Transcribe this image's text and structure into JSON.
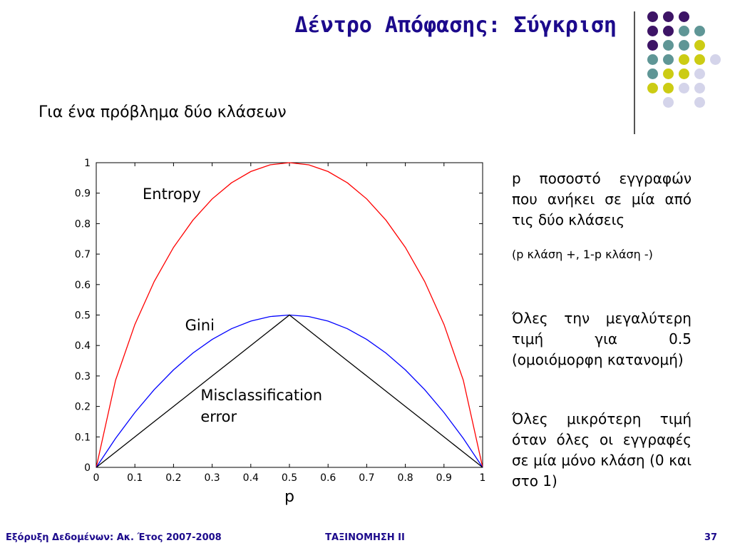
{
  "slide": {
    "title": "Δέντρο Απόφασης: Σύγκριση",
    "subtitle": "Για ένα πρόβλημα δύο κλάσεων"
  },
  "notes": {
    "p1": "p ποσοστό εγγραφών που ανήκει σε μία από τις δύο κλάσεις",
    "p2": "(p κλάση +, 1-p κλάση -)",
    "p3": "Όλες την μεγαλύτερη τιμή για 0.5 (ομοιόμορφη κατανομή)",
    "p4": "Όλες μικρότερη τιμή όταν όλες οι εγγραφές σε μία μόνο κλάση (0 και στο 1)"
  },
  "footer": {
    "left": "Εξόρυξη Δεδομένων: Ακ. Έτος 2007-2008",
    "center": "ΤΑΞΙΝΟΜΗΣΗ ΙΙ",
    "page": "37"
  },
  "colors": {
    "title": "#1c0a8c",
    "purple": "#3d1466",
    "teal": "#5f9696",
    "yellow": "#cccc14",
    "lavender": "#d4d4ea"
  },
  "dot_grid": [
    [
      "purple",
      "purple",
      "purple",
      null,
      null
    ],
    [
      "purple",
      "purple",
      "teal",
      "teal",
      null
    ],
    [
      "purple",
      "teal",
      "teal",
      "yellow",
      null
    ],
    [
      "teal",
      "teal",
      "yellow",
      "yellow",
      "lavender"
    ],
    [
      "teal",
      "yellow",
      "yellow",
      "lavender",
      null
    ],
    [
      "yellow",
      "yellow",
      "lavender",
      "lavender",
      null
    ],
    [
      null,
      "lavender",
      null,
      "lavender",
      null
    ]
  ],
  "chart_data": {
    "type": "line",
    "xlabel": "p",
    "ylabel": "",
    "xlim": [
      0,
      1
    ],
    "ylim": [
      0,
      1
    ],
    "xticks": [
      0,
      0.1,
      0.2,
      0.3,
      0.4,
      0.5,
      0.6,
      0.7,
      0.8,
      0.9,
      1
    ],
    "yticks": [
      0,
      0.1,
      0.2,
      0.3,
      0.4,
      0.5,
      0.6,
      0.7,
      0.8,
      0.9,
      1
    ],
    "xtick_labels": [
      "0",
      "0.1",
      "0.2",
      "0.3",
      "0.4",
      "0.5",
      "0.6",
      "0.7",
      "0.8",
      "0.9",
      "1"
    ],
    "ytick_labels": [
      "0",
      "0.1",
      "0.2",
      "0.3",
      "0.4",
      "0.5",
      "0.6",
      "0.7",
      "0.8",
      "0.9",
      "1"
    ],
    "grid": false,
    "x": [
      0,
      0.05,
      0.1,
      0.15,
      0.2,
      0.25,
      0.3,
      0.35,
      0.4,
      0.45,
      0.5,
      0.55,
      0.6,
      0.65,
      0.7,
      0.75,
      0.8,
      0.85,
      0.9,
      0.95,
      1
    ],
    "series": [
      {
        "name": "Entropy",
        "color": "#ff0000",
        "values": [
          0,
          0.286,
          0.469,
          0.61,
          0.722,
          0.811,
          0.881,
          0.934,
          0.971,
          0.993,
          1,
          0.993,
          0.971,
          0.934,
          0.881,
          0.811,
          0.722,
          0.61,
          0.469,
          0.286,
          0
        ]
      },
      {
        "name": "Gini",
        "color": "#0000ff",
        "values": [
          0,
          0.095,
          0.18,
          0.255,
          0.32,
          0.375,
          0.42,
          0.455,
          0.48,
          0.495,
          0.5,
          0.495,
          0.48,
          0.455,
          0.42,
          0.375,
          0.32,
          0.255,
          0.18,
          0.095,
          0
        ]
      },
      {
        "name": "Misclassification error",
        "color": "#000000",
        "values": [
          0,
          0.05,
          0.1,
          0.15,
          0.2,
          0.25,
          0.3,
          0.35,
          0.4,
          0.45,
          0.5,
          0.45,
          0.4,
          0.35,
          0.3,
          0.25,
          0.2,
          0.15,
          0.1,
          0.05,
          0
        ]
      }
    ],
    "annotations": [
      {
        "text": "Entropy",
        "x": 0.12,
        "y": 0.88
      },
      {
        "text": "Gini",
        "x": 0.23,
        "y": 0.45
      },
      {
        "text": "Misclassification",
        "x": 0.27,
        "y": 0.22
      },
      {
        "text": "error",
        "x": 0.27,
        "y": 0.15
      }
    ]
  }
}
